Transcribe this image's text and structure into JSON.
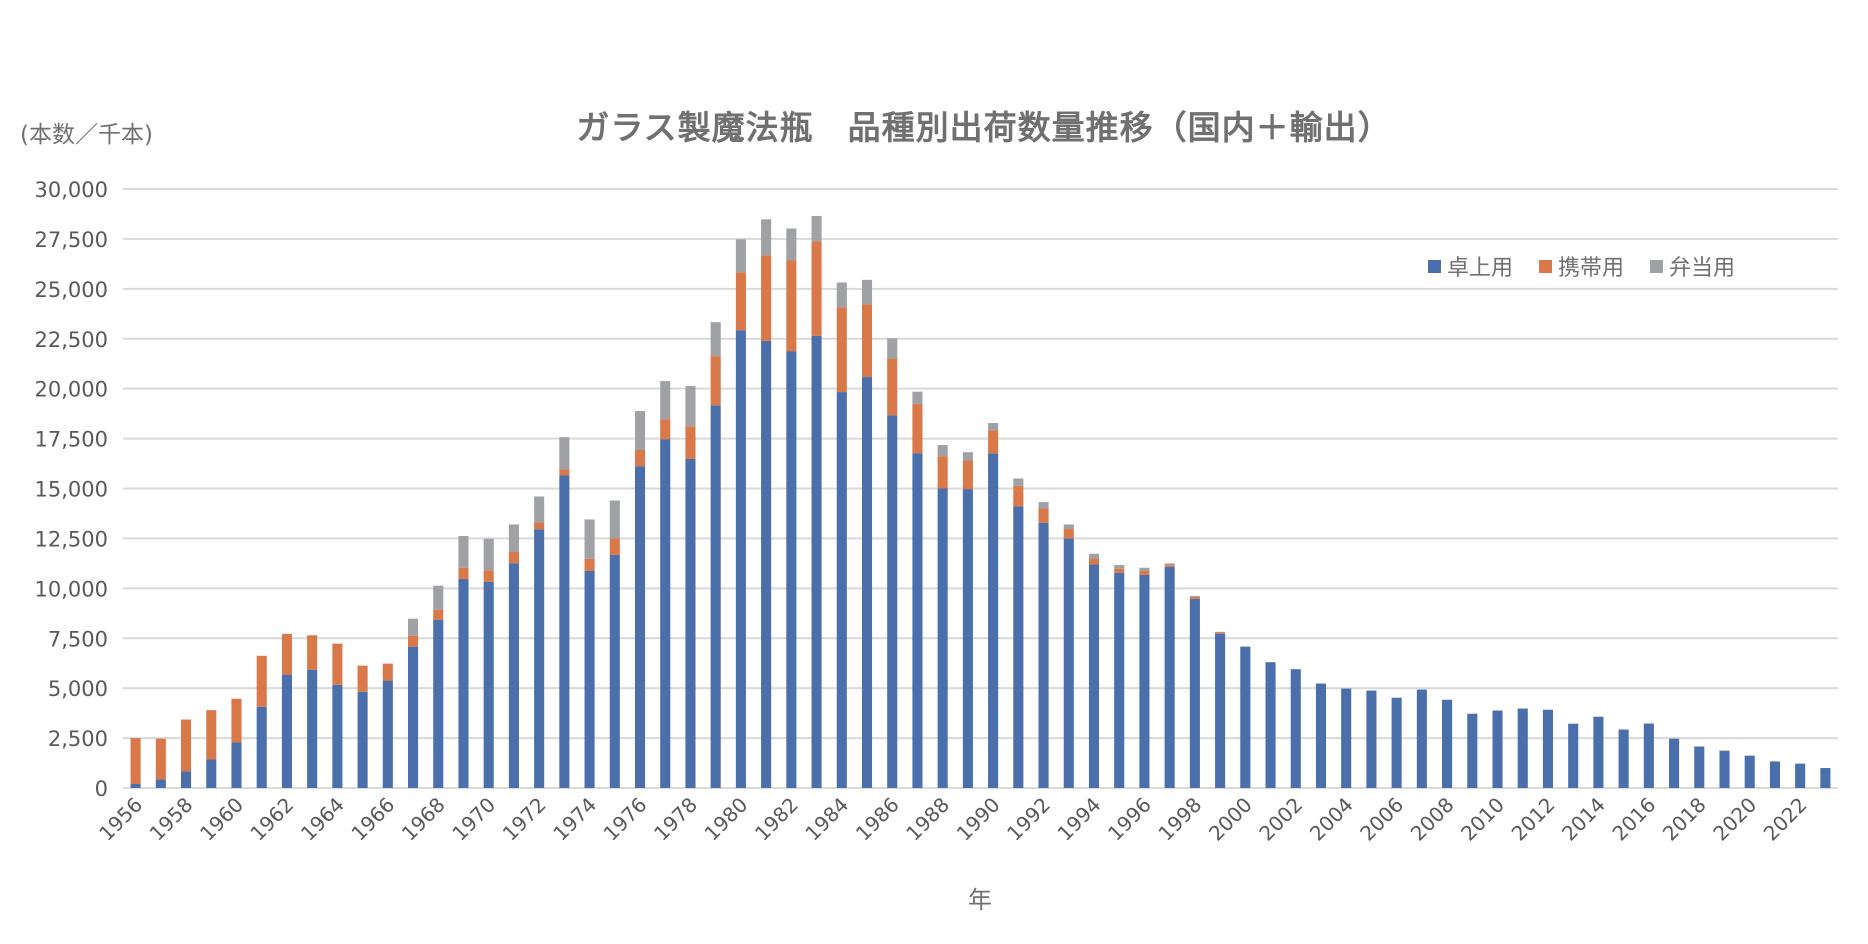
{
  "chart": {
    "title": "ガラス製魔法瓶　品種別出荷数量推移（国内＋輸出）",
    "y_unit": "(本数／千本)",
    "x_label": "年",
    "legend": [
      {
        "label": "卓上用",
        "color": "#4a6fab"
      },
      {
        "label": "携帯用",
        "color": "#d9794a"
      },
      {
        "label": "弁当用",
        "color": "#a0a1a5"
      }
    ]
  },
  "chart_data": {
    "type": "bar",
    "stacked": true,
    "title": "ガラス製魔法瓶　品種別出荷数量推移（国内＋輸出）",
    "xlabel": "年",
    "ylabel": "(本数／千本)",
    "ylim": [
      0,
      30000
    ],
    "yticks": [
      0,
      2500,
      5000,
      7500,
      10000,
      12500,
      15000,
      17500,
      20000,
      22500,
      25000,
      27500,
      30000
    ],
    "ytick_labels": [
      "0",
      "2,500",
      "5,000",
      "7,500",
      "10,000",
      "12,500",
      "15,000",
      "17,500",
      "20,000",
      "22,500",
      "25,000",
      "27,500",
      "30,000"
    ],
    "grid": true,
    "legend_position": "top-right",
    "categories": [
      1956,
      1957,
      1958,
      1959,
      1960,
      1961,
      1962,
      1963,
      1964,
      1965,
      1966,
      1967,
      1968,
      1969,
      1970,
      1971,
      1972,
      1973,
      1974,
      1975,
      1976,
      1977,
      1978,
      1979,
      1980,
      1981,
      1982,
      1983,
      1984,
      1985,
      1986,
      1987,
      1988,
      1989,
      1990,
      1991,
      1992,
      1993,
      1994,
      1995,
      1996,
      1997,
      1998,
      1999,
      2000,
      2001,
      2002,
      2003,
      2004,
      2005,
      2006,
      2007,
      2008,
      2009,
      2010,
      2011,
      2012,
      2013,
      2014,
      2015,
      2016,
      2017,
      2018,
      2019,
      2020,
      2021,
      2022,
      2023
    ],
    "xtick_labels_shown": [
      "1956",
      "1958",
      "1960",
      "1962",
      "1964",
      "1966",
      "1968",
      "1970",
      "1972",
      "1974",
      "1976",
      "1978",
      "1980",
      "1982",
      "1984",
      "1986",
      "1988",
      "1990",
      "1992",
      "1994",
      "1996",
      "1998",
      "2000",
      "2002",
      "2004",
      "2006",
      "2008",
      "2010",
      "2012",
      "2014",
      "2016",
      "2018",
      "2020",
      "2022"
    ],
    "series": [
      {
        "name": "卓上用",
        "color": "#4a6fab",
        "values": [
          200,
          430,
          830,
          1430,
          2280,
          4070,
          5680,
          5920,
          5170,
          4820,
          5380,
          7080,
          8430,
          10470,
          10330,
          11260,
          12960,
          15650,
          10870,
          11670,
          16120,
          17470,
          16480,
          19170,
          22930,
          22400,
          21880,
          22650,
          19830,
          20580,
          18670,
          16770,
          15000,
          14970,
          16750,
          14100,
          13280,
          12500,
          11200,
          10780,
          10670,
          11070,
          9470,
          7730,
          7080,
          6300,
          5950,
          5230,
          4980,
          4880,
          4520,
          4930,
          4420,
          3720,
          3880,
          3980,
          3920,
          3220,
          3570,
          2930,
          3230,
          2470,
          2080,
          1870,
          1620,
          1330,
          1220,
          1000
        ]
      },
      {
        "name": "携帯用",
        "color": "#d9794a",
        "values": [
          2300,
          2040,
          2600,
          2470,
          2190,
          2550,
          2040,
          1730,
          2060,
          1310,
          850,
          540,
          500,
          560,
          570,
          560,
          340,
          300,
          610,
          830,
          810,
          1000,
          1640,
          2460,
          2900,
          4280,
          4540,
          4730,
          4240,
          3640,
          2850,
          2460,
          1620,
          1430,
          1170,
          1030,
          720,
          470,
          300,
          200,
          200,
          80,
          100,
          60,
          0,
          0,
          0,
          0,
          0,
          0,
          0,
          0,
          0,
          0,
          0,
          0,
          0,
          0,
          0,
          0,
          0,
          0,
          0,
          0,
          0,
          0,
          0,
          0
        ]
      },
      {
        "name": "弁当用",
        "color": "#a0a1a5",
        "values": [
          0,
          0,
          0,
          0,
          0,
          0,
          0,
          0,
          0,
          0,
          0,
          860,
          1200,
          1590,
          1580,
          1380,
          1300,
          1620,
          1970,
          1900,
          1950,
          1910,
          2010,
          1700,
          1650,
          1800,
          1600,
          1270,
          1250,
          1230,
          1000,
          620,
          560,
          420,
          360,
          370,
          320,
          230,
          230,
          190,
          160,
          100,
          50,
          30,
          0,
          0,
          0,
          0,
          0,
          0,
          0,
          0,
          0,
          0,
          0,
          0,
          0,
          0,
          0,
          0,
          0,
          0,
          0,
          0,
          0,
          0,
          0,
          0
        ]
      }
    ]
  }
}
